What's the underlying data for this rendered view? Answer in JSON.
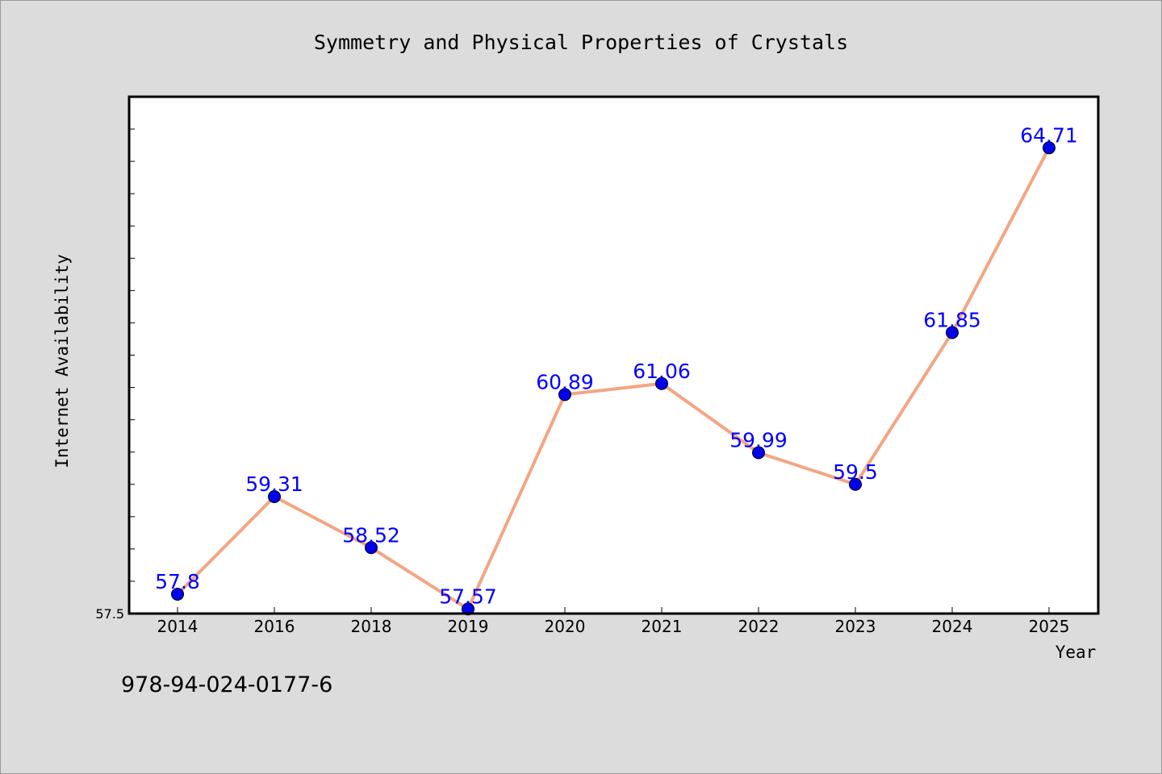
{
  "chart_data": {
    "type": "line",
    "title": "Symmetry and Physical Properties of Crystals",
    "xlabel": "Year",
    "ylabel": "Internet Availability",
    "categories": [
      "2014",
      "2016",
      "2018",
      "2019",
      "2020",
      "2021",
      "2022",
      "2023",
      "2024",
      "2025"
    ],
    "values": [
      57.8,
      59.31,
      58.52,
      57.57,
      60.89,
      61.06,
      59.99,
      59.5,
      61.85,
      64.71
    ],
    "data_labels": [
      "57.8",
      "59.31",
      "58.52",
      "57.57",
      "60.89",
      "61.06",
      "59.99",
      "59.5",
      "61.85",
      "64.71"
    ],
    "ylim": [
      57.5,
      65.5
    ],
    "yticks_labeled": [
      "57.5"
    ],
    "grid": false,
    "line_color": "#f4a582",
    "marker_color": "#0000ee",
    "label_color": "#0000ff"
  },
  "footer": {
    "isbn": "978-94-024-0177-6"
  }
}
